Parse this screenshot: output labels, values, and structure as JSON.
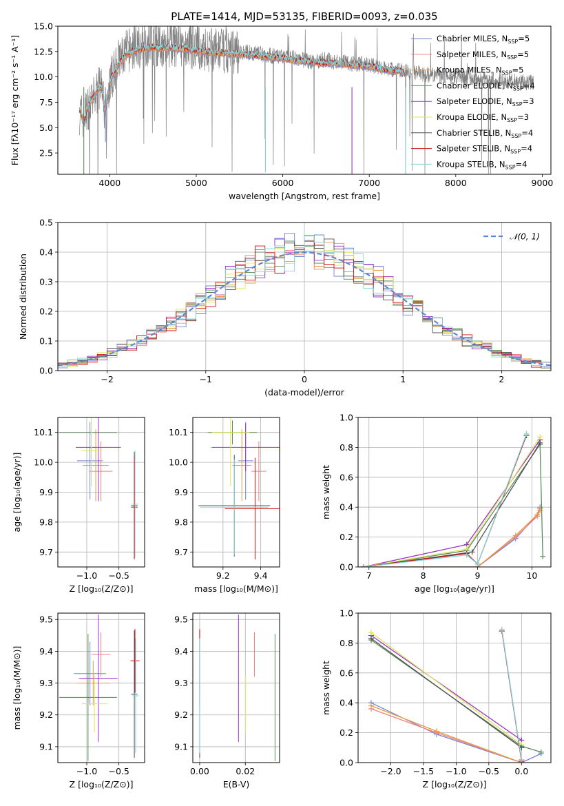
{
  "figure": {
    "title": "PLATE=1414, MJD=53135, FIBERID=0093, z=0.035"
  },
  "series_colors": [
    "#6f86d6",
    "#f08080",
    "#e89a3c",
    "#5d8a5d",
    "#9b30c8",
    "#dde65a",
    "#505050",
    "#cc1010",
    "#80d4d8"
  ],
  "chart_data": [
    {
      "id": "spectrum",
      "type": "line",
      "xlabel": "wavelength [Angstrom, rest frame]",
      "ylabel": "Flux [fλ10⁻¹⁷ erg cm⁻² s⁻¹ A⁻¹]",
      "xlim": [
        3400,
        9100
      ],
      "ylim": [
        0.4,
        15.0
      ],
      "xticks": [
        4000,
        5000,
        6000,
        7000,
        8000,
        9000
      ],
      "yticks": [
        2.5,
        5.0,
        7.5,
        10.0,
        12.5,
        15.0
      ],
      "grid": false,
      "legend_position": "top-right",
      "data": {
        "name": "data",
        "color": "#808080",
        "x": [
          3650,
          3700,
          3750,
          3800,
          3850,
          3900,
          3950,
          4000,
          4050,
          4100,
          4150,
          4200,
          4300,
          4400,
          4500,
          4600,
          4700,
          4800,
          4900,
          5000,
          5100,
          5200,
          5300,
          5400,
          5500,
          5600,
          5700,
          5800,
          5900,
          6000,
          6100,
          6200,
          6300,
          6400,
          6500,
          6600,
          6700,
          6800,
          6900,
          7000,
          7100,
          7200,
          7300,
          7400,
          7500,
          7600,
          7700,
          7800,
          7900,
          8000,
          8100,
          8200,
          8300,
          8400,
          8500,
          8600,
          8700,
          8800,
          8900
        ],
        "y": [
          6.5,
          6.0,
          7.0,
          7.5,
          8.5,
          9.0,
          6.0,
          9.5,
          10.5,
          11.5,
          12.0,
          12.5,
          13.0,
          13.2,
          13.3,
          13.0,
          13.2,
          13.0,
          12.9,
          12.8,
          12.7,
          12.6,
          12.6,
          12.5,
          12.5,
          12.4,
          12.3,
          12.2,
          12.0,
          12.0,
          11.9,
          11.8,
          11.5,
          11.6,
          11.7,
          11.5,
          11.5,
          11.3,
          11.3,
          11.2,
          11.0,
          10.8,
          10.7,
          10.5,
          10.5,
          10.3,
          10.2,
          10.0,
          10.0,
          10.0,
          9.9,
          9.8,
          9.7,
          9.7,
          9.6,
          9.6,
          9.5,
          9.5,
          9.4
        ]
      },
      "model": {
        "x": [
          3650,
          3700,
          3750,
          3800,
          3850,
          3900,
          3950,
          4000,
          4100,
          4200,
          4300,
          4400,
          4500,
          4600,
          4700,
          4800,
          4900,
          5000,
          5200,
          5400,
          5600,
          5800,
          6000,
          6200,
          6400,
          6600,
          6800,
          7000,
          7200,
          7400
        ],
        "y": [
          6.8,
          5.5,
          7.2,
          7.8,
          8.5,
          9.2,
          6.5,
          9.6,
          11.2,
          12.2,
          12.6,
          12.8,
          12.9,
          12.8,
          12.9,
          12.8,
          12.7,
          12.6,
          12.4,
          12.3,
          12.2,
          12.0,
          11.8,
          11.6,
          11.4,
          11.3,
          11.2,
          11.0,
          10.7,
          10.5
        ]
      },
      "series": [
        {
          "name": "Chabrier MILES, N",
          "sub": "SSP",
          "suffix": "=5"
        },
        {
          "name": "Salpeter MILES, N",
          "sub": "SSP",
          "suffix": "=5"
        },
        {
          "name": "Kroupa MILES, N",
          "sub": "SSP",
          "suffix": "=5"
        },
        {
          "name": "Chabrier ELODIE, N",
          "sub": "SSP",
          "suffix": "=4"
        },
        {
          "name": "Salpeter ELODIE, N",
          "sub": "SSP",
          "suffix": "=3"
        },
        {
          "name": "Kroupa ELODIE, N",
          "sub": "SSP",
          "suffix": "=3"
        },
        {
          "name": "Chabrier STELIB, N",
          "sub": "SSP",
          "suffix": "=4"
        },
        {
          "name": "Salpeter STELIB, N",
          "sub": "SSP",
          "suffix": "=4"
        },
        {
          "name": "Kroupa STELIB, N",
          "sub": "SSP",
          "suffix": "=4"
        }
      ]
    },
    {
      "id": "residuals",
      "type": "line",
      "xlabel": "(data-model)/error",
      "ylabel": "Normed distribution",
      "xlim": [
        -2.5,
        2.5
      ],
      "ylim": [
        0.0,
        0.5
      ],
      "xticks": [
        -2,
        -1,
        0,
        1,
        2
      ],
      "yticks": [
        0.0,
        0.1,
        0.2,
        0.3,
        0.4,
        0.5
      ],
      "grid": true,
      "legend_position": "top-right",
      "legend": "𝒩(0, 1)",
      "gaussian": {
        "mean": 0,
        "sigma": 1
      },
      "bin_edges_step": 0.1
    },
    {
      "id": "z-age",
      "type": "scatter",
      "xlabel": "Z [log₁₀(Z/Z⊙)]",
      "ylabel": "age  [log₁₀(age/yr)]",
      "xlim": [
        -1.45,
        -0.1
      ],
      "ylim": [
        9.65,
        10.15
      ],
      "xticks": [
        -1.0,
        -0.5
      ],
      "yticks": [
        9.7,
        9.8,
        9.9,
        10.0,
        10.1
      ],
      "grid": true,
      "points": [
        {
          "x": -0.95,
          "xe": 0.2,
          "y": 10.005,
          "ye": 0.13
        },
        {
          "x": -0.78,
          "xe": 0.18,
          "y": 9.97,
          "ye": 0.1
        },
        {
          "x": -0.86,
          "xe": 0.2,
          "y": 9.99,
          "ye": 0.12
        },
        {
          "x": -0.98,
          "xe": 0.45,
          "y": 10.1,
          "ye": 0.0
        },
        {
          "x": -0.82,
          "xe": 0.35,
          "y": 10.05,
          "ye": 0.18
        },
        {
          "x": -0.93,
          "xe": 0.15,
          "y": 10.04,
          "ye": 0.12
        },
        {
          "x": -0.26,
          "xe": 0.05,
          "y": 9.855,
          "ye": 0.18
        },
        {
          "x": -0.26,
          "xe": 0.05,
          "y": 9.85,
          "ye": 0.17
        },
        {
          "x": -0.25,
          "xe": 0.05,
          "y": 9.86,
          "ye": 0.18
        }
      ]
    },
    {
      "id": "mass-age",
      "type": "scatter",
      "xlabel": "mass [log₁₀(M/M⊙)]",
      "ylabel": "",
      "xlim": [
        9.04,
        9.5
      ],
      "ylim": [
        9.65,
        10.15
      ],
      "xticks": [
        9.2,
        9.4
      ],
      "yticks": [
        9.7,
        9.8,
        9.9,
        10.0,
        10.1
      ],
      "grid": true,
      "points": [
        {
          "x": 9.32,
          "xe": 0.04,
          "y": 10.005,
          "ye": 0.13
        },
        {
          "x": 9.39,
          "xe": 0.04,
          "y": 9.97,
          "ye": 0.1
        },
        {
          "x": 9.3,
          "xe": 0.05,
          "y": 9.99,
          "ye": 0.12
        },
        {
          "x": 9.25,
          "xe": 0.13,
          "y": 10.1,
          "ye": 0.04
        },
        {
          "x": 9.32,
          "xe": 0.18,
          "y": 10.05,
          "ye": 0.08
        },
        {
          "x": 9.24,
          "xe": 0.1,
          "y": 10.1,
          "ye": 0.18
        },
        {
          "x": 9.26,
          "xe": 0.19,
          "y": 9.855,
          "ye": 0.17
        },
        {
          "x": 9.37,
          "xe": 0.16,
          "y": 9.845,
          "ye": 0.17
        },
        {
          "x": 9.26,
          "xe": 0.18,
          "y": 9.85,
          "ye": 0.16
        }
      ]
    },
    {
      "id": "age-weight",
      "type": "line",
      "xlabel": "age  [log₁₀(age/yr)]",
      "ylabel": "mass weight",
      "xlim": [
        6.8,
        10.35
      ],
      "ylim": [
        0.0,
        1.0
      ],
      "xticks": [
        7,
        8,
        9,
        10
      ],
      "yticks": [
        0.0,
        0.2,
        0.4,
        0.6,
        0.8,
        1.0
      ],
      "grid": true,
      "series_points": [
        {
          "x": [
            6.9,
            9.0,
            9.7,
            10.1,
            10.15
          ],
          "y": [
            0.0,
            0.0,
            0.19,
            0.35,
            0.4
          ]
        },
        {
          "x": [
            6.9,
            9.0,
            9.7,
            10.1,
            10.15
          ],
          "y": [
            0.0,
            0.0,
            0.2,
            0.34,
            0.38
          ]
        },
        {
          "x": [
            6.9,
            9.0,
            9.7,
            10.1,
            10.15
          ],
          "y": [
            0.0,
            0.0,
            0.21,
            0.35,
            0.39
          ]
        },
        {
          "x": [
            6.9,
            8.8,
            10.15,
            10.2
          ],
          "y": [
            0.0,
            0.11,
            0.82,
            0.07
          ]
        },
        {
          "x": [
            6.9,
            8.8,
            10.15
          ],
          "y": [
            0.0,
            0.15,
            0.85
          ]
        },
        {
          "x": [
            6.9,
            8.8,
            10.15
          ],
          "y": [
            0.0,
            0.12,
            0.87
          ]
        },
        {
          "x": [
            6.9,
            8.9,
            10.15
          ],
          "y": [
            0.0,
            0.1,
            0.83
          ]
        },
        {
          "x": [
            6.9,
            8.8,
            9.0,
            9.9
          ],
          "y": [
            0.0,
            0.09,
            0.02,
            0.88
          ]
        },
        {
          "x": [
            6.9,
            8.8,
            9.0,
            9.9
          ],
          "y": [
            0.0,
            0.08,
            0.02,
            0.89
          ]
        }
      ]
    },
    {
      "id": "z-mass",
      "type": "scatter",
      "xlabel": "Z [log₁₀(Z/Z⊙)]",
      "ylabel": "mass [log₁₀(M/M⊙)]",
      "xlim": [
        -1.45,
        -0.1
      ],
      "ylim": [
        9.05,
        9.52
      ],
      "xticks": [
        -1.0,
        -0.5
      ],
      "yticks": [
        9.1,
        9.2,
        9.3,
        9.4,
        9.5
      ],
      "grid": true,
      "points": [
        {
          "x": -0.95,
          "xe": 0.25,
          "y": 9.33,
          "ye": 0.1
        },
        {
          "x": -0.78,
          "xe": 0.15,
          "y": 9.39,
          "ye": 0.07
        },
        {
          "x": -0.9,
          "xe": 0.25,
          "y": 9.3,
          "ye": 0.07
        },
        {
          "x": -0.98,
          "xe": 0.45,
          "y": 9.255,
          "ye": 0.2
        },
        {
          "x": -0.82,
          "xe": 0.3,
          "y": 9.315,
          "ye": 0.2
        },
        {
          "x": -0.88,
          "xe": 0.2,
          "y": 9.235,
          "ye": 0.09
        },
        {
          "x": -0.26,
          "xe": 0.05,
          "y": 9.265,
          "ye": 0.2
        },
        {
          "x": -0.25,
          "xe": 0.07,
          "y": 9.37,
          "ye": 0.1
        },
        {
          "x": -0.24,
          "xe": 0.05,
          "y": 9.26,
          "ye": 0.18
        }
      ]
    },
    {
      "id": "ebv-mass",
      "type": "scatter",
      "xlabel": "E(B-V)",
      "ylabel": "",
      "xlim": [
        -0.003,
        0.035
      ],
      "ylim": [
        9.05,
        9.52
      ],
      "xticks": [
        0.0,
        0.02
      ],
      "yticks": [
        9.1,
        9.2,
        9.3,
        9.4,
        9.5
      ],
      "grid": true,
      "points": [
        {
          "x": 0.0,
          "xe": 0,
          "y": 9.33,
          "ye": 0.1
        },
        {
          "x": 0.024,
          "xe": 0,
          "y": 9.39,
          "ye": 0.07
        },
        {
          "x": 0.0,
          "xe": 0,
          "y": 9.3,
          "ye": 0.07
        },
        {
          "x": 0.033,
          "xe": 0,
          "y": 9.255,
          "ye": 0.2
        },
        {
          "x": 0.017,
          "xe": 0,
          "y": 9.315,
          "ye": 0.2
        },
        {
          "x": 0.02,
          "xe": 0,
          "y": 9.235,
          "ye": 0.09
        },
        {
          "x": 0.0,
          "xe": 0,
          "y": 9.265,
          "ye": 0.2
        },
        {
          "x": 0.0,
          "xe": 0,
          "y": 9.37,
          "ye": 0.1
        },
        {
          "x": 0.0,
          "xe": 0,
          "y": 9.26,
          "ye": 0.18
        }
      ]
    },
    {
      "id": "z-weight",
      "type": "line",
      "xlabel": "Z [log₁₀(Z/Z⊙)]",
      "ylabel": "mass weight",
      "xlim": [
        -2.5,
        0.45
      ],
      "ylim": [
        0.0,
        1.0
      ],
      "xticks": [
        -2.0,
        -1.5,
        -1.0,
        -0.5,
        0.0
      ],
      "yticks": [
        0.0,
        0.2,
        0.4,
        0.6,
        0.8,
        1.0
      ],
      "grid": true,
      "series_points": [
        {
          "x": [
            -2.3,
            -1.3,
            0.0,
            0.3
          ],
          "y": [
            0.4,
            0.19,
            0.0,
            0.06
          ]
        },
        {
          "x": [
            -2.3,
            -1.3,
            0.0
          ],
          "y": [
            0.36,
            0.2,
            0.0
          ]
        },
        {
          "x": [
            -2.3,
            -1.3,
            0.0
          ],
          "y": [
            0.38,
            0.21,
            0.0
          ]
        },
        {
          "x": [
            -2.3,
            0.0,
            0.3
          ],
          "y": [
            0.82,
            0.11,
            0.07
          ]
        },
        {
          "x": [
            -2.3,
            0.0
          ],
          "y": [
            0.85,
            0.15
          ]
        },
        {
          "x": [
            -2.3,
            0.0
          ],
          "y": [
            0.87,
            0.12
          ]
        },
        {
          "x": [
            -2.3,
            0.0
          ],
          "y": [
            0.83,
            0.1
          ]
        },
        {
          "x": [
            -0.3,
            0.0
          ],
          "y": [
            0.88,
            0.01
          ]
        },
        {
          "x": [
            -0.3,
            0.0
          ],
          "y": [
            0.89,
            0.02
          ]
        }
      ]
    }
  ]
}
